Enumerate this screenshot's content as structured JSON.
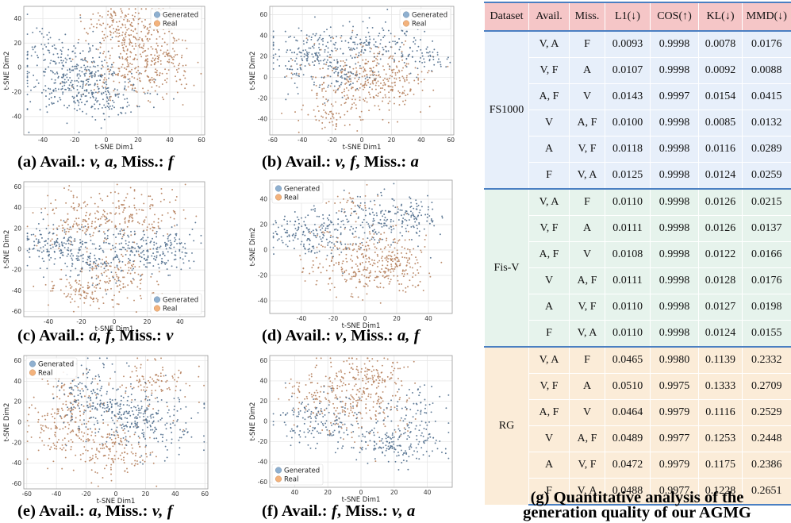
{
  "colors": {
    "generated": "#4f6d8c",
    "real": "#b5805c",
    "generated_legend": "#8fb0d0",
    "real_legend": "#f3b27c",
    "grid": "#e3e3e3",
    "table_header": "#f5c6c7",
    "table_fs": "#e7effa",
    "table_fis": "#e6f3ec",
    "table_rg": "#fbecd8",
    "table_rule": "#4a7fc2"
  },
  "plots": [
    {
      "id": "a",
      "caption_letter": "(a)",
      "caption_pre": " Avail.: ",
      "caption_avail": "v, a",
      "caption_mid": ", Miss.: ",
      "caption_miss": "f",
      "legend": {
        "generated": "Generated",
        "real": "Real"
      },
      "xlabel": "t-SNE Dim1",
      "ylabel": "t-SNE Dim2",
      "xticks": [
        -40,
        -20,
        0,
        20,
        40,
        60
      ],
      "yticks": [
        40,
        20,
        0,
        -20,
        -40
      ],
      "xlim": [
        -52,
        62
      ],
      "ylim": [
        -55,
        50
      ]
    },
    {
      "id": "b",
      "caption_letter": "(b)",
      "caption_pre": " Avail.: ",
      "caption_avail": "v, f",
      "caption_mid": ", Miss.: ",
      "caption_miss": "a",
      "legend": {
        "generated": "Generated",
        "real": "Real"
      },
      "xlabel": "t-SNE Dim1",
      "ylabel": "t-SNE Dim2",
      "xticks": [
        -60,
        -40,
        -20,
        0,
        20,
        40,
        60
      ],
      "yticks": [
        60,
        40,
        20,
        0,
        -20,
        -40
      ],
      "xlim": [
        -62,
        62
      ],
      "ylim": [
        -55,
        68
      ]
    },
    {
      "id": "c",
      "caption_letter": "(c)",
      "caption_pre": " Avail.: ",
      "caption_avail": "a, f",
      "caption_mid": ", Miss.: ",
      "caption_miss": "v",
      "legend": {
        "generated": "Generated",
        "real": "Real"
      },
      "xlabel": "t-SNE Dim1",
      "ylabel": "t-SNE Dim2",
      "xticks": [
        -40,
        -20,
        0,
        20,
        40
      ],
      "yticks": [
        60,
        40,
        20,
        0,
        -20,
        -40,
        -60
      ],
      "xlim": [
        -55,
        55
      ],
      "ylim": [
        -65,
        65
      ]
    },
    {
      "id": "d",
      "caption_letter": "(d)",
      "caption_pre": " Avail.: ",
      "caption_avail": "v",
      "caption_mid": ", Miss.: ",
      "caption_miss": "a, f",
      "legend": {
        "generated": "Generated",
        "real": "Real"
      },
      "xlabel": "t-SNE Dim1",
      "ylabel": "t-SNE Dim2",
      "xticks": [
        -40,
        -20,
        0,
        20,
        40
      ],
      "yticks": [
        40,
        20,
        0,
        -20,
        -40
      ],
      "xlim": [
        -60,
        55
      ],
      "ylim": [
        -50,
        55
      ]
    },
    {
      "id": "e",
      "caption_letter": "(e)",
      "caption_pre": " Avail.: ",
      "caption_avail": "a",
      "caption_mid": ", Miss.: ",
      "caption_miss": "v, f",
      "legend": {
        "generated": "Generated",
        "real": "Real"
      },
      "xlabel": "t-SNE Dim1",
      "ylabel": "t-SNE Dim2",
      "xticks": [
        -60,
        -40,
        -20,
        0,
        20,
        40,
        60
      ],
      "yticks": [
        60,
        40,
        20,
        0,
        -20,
        -40,
        -60
      ],
      "xlim": [
        -62,
        62
      ],
      "ylim": [
        -65,
        65
      ]
    },
    {
      "id": "f",
      "caption_letter": "(f)",
      "caption_pre": " Avail.: ",
      "caption_avail": "f",
      "caption_mid": ", Miss.: ",
      "caption_miss": "v, a",
      "legend": {
        "generated": "Generated",
        "real": "Real"
      },
      "xlabel": "t-SNE Dim1",
      "ylabel": "t-SNE Dim2",
      "xticks": [
        40,
        20,
        0,
        20,
        40
      ],
      "yticks": [
        60,
        40,
        20,
        0,
        -20,
        -40,
        -60
      ],
      "xlim": [
        -55,
        55
      ],
      "ylim": [
        -65,
        65
      ]
    }
  ],
  "table": {
    "headers": [
      "Dataset",
      "Avail.",
      "Miss.",
      "L1(↓)",
      "COS(↑)",
      "KL(↓)",
      "MMD(↓)"
    ],
    "groups": [
      {
        "dataset": "FS1000",
        "rows": [
          [
            "V, A",
            "F",
            "0.0093",
            "0.9998",
            "0.0078",
            "0.0176"
          ],
          [
            "V, F",
            "A",
            "0.0107",
            "0.9998",
            "0.0092",
            "0.0088"
          ],
          [
            "A, F",
            "V",
            "0.0143",
            "0.9997",
            "0.0154",
            "0.0415"
          ],
          [
            "V",
            "A, F",
            "0.0100",
            "0.9998",
            "0.0085",
            "0.0132"
          ],
          [
            "A",
            "V, F",
            "0.0118",
            "0.9998",
            "0.0116",
            "0.0289"
          ],
          [
            "F",
            "V, A",
            "0.0125",
            "0.9998",
            "0.0124",
            "0.0259"
          ]
        ]
      },
      {
        "dataset": "Fis-V",
        "rows": [
          [
            "V, A",
            "F",
            "0.0110",
            "0.9998",
            "0.0126",
            "0.0215"
          ],
          [
            "V, F",
            "A",
            "0.0111",
            "0.9998",
            "0.0126",
            "0.0137"
          ],
          [
            "A, F",
            "V",
            "0.0108",
            "0.9998",
            "0.0122",
            "0.0166"
          ],
          [
            "V",
            "A, F",
            "0.0111",
            "0.9998",
            "0.0128",
            "0.0176"
          ],
          [
            "A",
            "V, F",
            "0.0110",
            "0.9998",
            "0.0127",
            "0.0198"
          ],
          [
            "F",
            "V, A",
            "0.0110",
            "0.9998",
            "0.0124",
            "0.0155"
          ]
        ]
      },
      {
        "dataset": "RG",
        "rows": [
          [
            "V, A",
            "F",
            "0.0465",
            "0.9980",
            "0.1139",
            "0.2332"
          ],
          [
            "V, F",
            "A",
            "0.0510",
            "0.9975",
            "0.1333",
            "0.2709"
          ],
          [
            "A, F",
            "V",
            "0.0464",
            "0.9979",
            "0.1116",
            "0.2529"
          ],
          [
            "V",
            "A, F",
            "0.0489",
            "0.9977",
            "0.1253",
            "0.2448"
          ],
          [
            "A",
            "V, F",
            "0.0472",
            "0.9979",
            "0.1175",
            "0.2386"
          ],
          [
            "F",
            "V, A",
            "0.0488",
            "0.9977",
            "0.1228",
            "0.2651"
          ]
        ]
      }
    ],
    "caption_line1": "(g) Quantitative analysis of the",
    "caption_line2": "generation quality of our AGMG"
  }
}
